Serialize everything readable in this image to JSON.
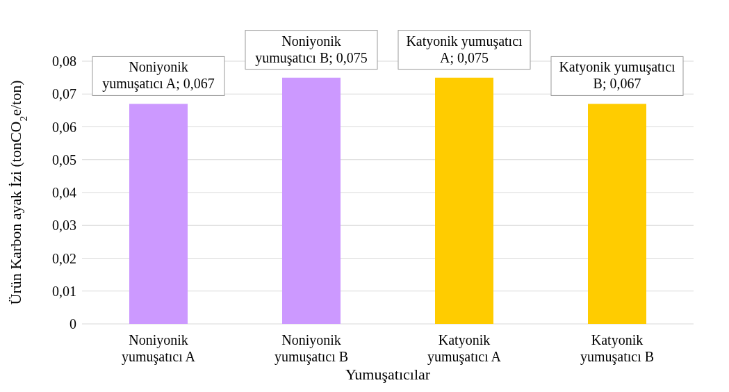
{
  "chart_data": {
    "type": "bar",
    "xlabel": "Yumuşatıcılar",
    "ylabel": "Ürün Karbon ayak İzi (tonCO$_{2}$e/ton)",
    "categories": [
      "Noniyonik yumuşatıcı A",
      "Noniyonik yumuşatıcı B",
      "Katyonik yumuşatıcı A",
      "Katyonik yumuşatıcı B"
    ],
    "values": [
      0.067,
      0.075,
      0.075,
      0.067
    ],
    "colors": [
      "#cc99ff",
      "#cc99ff",
      "#ffcc00",
      "#ffcc00"
    ],
    "value_labels": [
      "Noniyonik yumuşatıcı A; 0,067",
      "Noniyonik yumuşatıcı B; 0,075",
      "Katyonik yumuşatıcı A; 0,075",
      "Katyonik yumuşatıcı B; 0,067"
    ],
    "ylim": [
      0,
      0.08
    ],
    "yticks": [
      {
        "value": 0,
        "label": "0"
      },
      {
        "value": 0.01,
        "label": "0,01"
      },
      {
        "value": 0.02,
        "label": "0,02"
      },
      {
        "value": 0.03,
        "label": "0,03"
      },
      {
        "value": 0.04,
        "label": "0,04"
      },
      {
        "value": 0.05,
        "label": "0,05"
      },
      {
        "value": 0.06,
        "label": "0,06"
      },
      {
        "value": 0.07,
        "label": "0,07"
      },
      {
        "value": 0.08,
        "label": "0,08"
      }
    ],
    "grid": "y",
    "legend": false
  }
}
